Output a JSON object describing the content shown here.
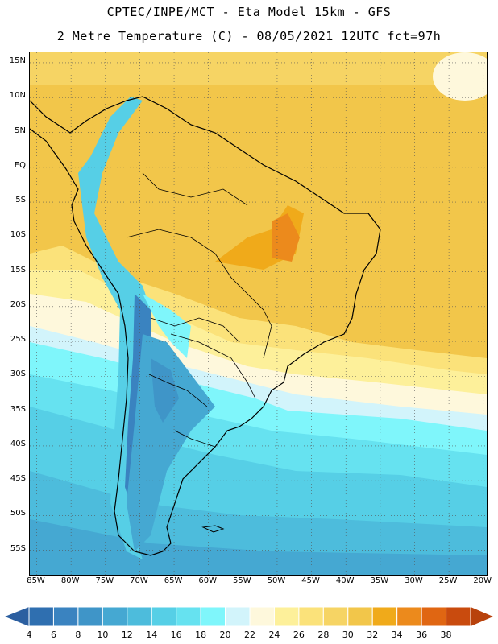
{
  "header": {
    "line1": "CPTEC/INPE/MCT -  Eta Model 15km - GFS",
    "line2": "2 Metre Temperature (C) - 08/05/2021 12UTC fct=97h"
  },
  "map": {
    "lat_range": [
      -58.5,
      16.5
    ],
    "lon_range": [
      -86,
      -19.5
    ],
    "y_axis": {
      "ticks": [
        15,
        10,
        5,
        0,
        -5,
        -10,
        -15,
        -20,
        -25,
        -30,
        -35,
        -40,
        -45,
        -50,
        -55
      ],
      "labels": [
        "15N",
        "10N",
        "5N",
        "EQ",
        "5S",
        "10S",
        "15S",
        "20S",
        "25S",
        "30S",
        "35S",
        "40S",
        "45S",
        "50S",
        "55S"
      ]
    },
    "x_axis": {
      "ticks": [
        -85,
        -80,
        -75,
        -70,
        -65,
        -60,
        -55,
        -50,
        -45,
        -40,
        -35,
        -30,
        -25,
        -20
      ],
      "labels": [
        "85W",
        "80W",
        "75W",
        "70W",
        "65W",
        "60W",
        "55W",
        "50W",
        "45W",
        "40W",
        "35W",
        "30W",
        "25W",
        "20W"
      ]
    },
    "gridlines": "dotted"
  },
  "colorbar": {
    "labels": [
      "4",
      "6",
      "8",
      "10",
      "12",
      "14",
      "16",
      "18",
      "20",
      "22",
      "24",
      "26",
      "28",
      "30",
      "32",
      "34",
      "36",
      "38"
    ],
    "colors": [
      "#2f6fb0",
      "#3a83c0",
      "#3f95c8",
      "#45a8d2",
      "#4dbcdc",
      "#56cfe6",
      "#66e2f0",
      "#7ff6fb",
      "#d2f4fb",
      "#fef8dc",
      "#fdf09a",
      "#fbe27a",
      "#f6d464",
      "#f2c64a",
      "#f0aa1a",
      "#ec8a1c",
      "#e06612",
      "#c94b0e"
    ],
    "left_arrow_color": "#2c5fa0",
    "right_arrow_color": "#b8420c"
  }
}
